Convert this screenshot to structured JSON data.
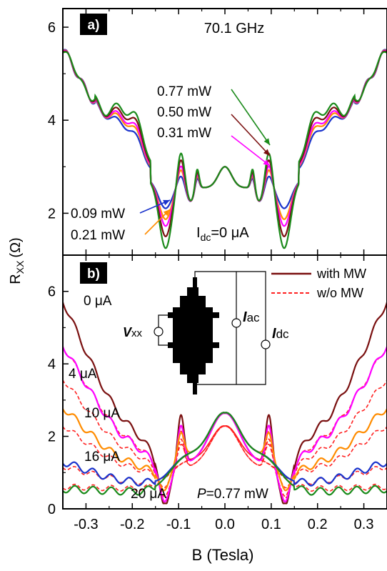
{
  "figure": {
    "ylabel_main": "R",
    "ylabel_sub": "XX",
    "ylabel_unit": "(Ω)",
    "xlabel": "B (Tesla)"
  },
  "chart_data": [
    {
      "type": "line",
      "panel_label": "a)",
      "title": "70.1 GHz",
      "annotation": {
        "main": "I",
        "sub": "dc",
        "rest": "=0 μA"
      },
      "xlim": [
        -0.35,
        0.35
      ],
      "ylim": [
        1.1,
        6.4
      ],
      "xticks": [
        -0.3,
        -0.2,
        -0.1,
        0.0,
        0.1,
        0.2,
        0.3
      ],
      "yticks": [
        2,
        4,
        6
      ],
      "series": [
        {
          "name": "0.77 mW",
          "color": "#1a8a1a",
          "power": 0.77
        },
        {
          "name": "0.50 mW",
          "color": "#7a1010",
          "power": 0.5
        },
        {
          "name": "0.31 mW",
          "color": "#ff00ff",
          "power": 0.31
        },
        {
          "name": "0.21 mW",
          "color": "#ff8c00",
          "power": 0.21
        },
        {
          "name": "0.09 mW",
          "color": "#1a33cc",
          "power": 0.09
        }
      ]
    },
    {
      "type": "line",
      "panel_label": "b)",
      "annotation": {
        "main": "P",
        "rest": "=0.77 mW"
      },
      "xlim": [
        -0.35,
        0.35
      ],
      "ylim": [
        0,
        7
      ],
      "xticks": [
        -0.3,
        -0.2,
        -0.1,
        0.0,
        0.1,
        0.2,
        0.3
      ],
      "xticklabels": [
        "-0.3",
        "-0.2",
        "-0.1",
        "0.0",
        "0.1",
        "0.2",
        "0.3"
      ],
      "yticks": [
        0,
        2,
        4,
        6
      ],
      "legend": [
        {
          "label": "with MW",
          "style": "solid",
          "color": "#7a1010"
        },
        {
          "label": "w/o MW",
          "style": "dashed",
          "color": "#ff2020"
        }
      ],
      "series": [
        {
          "name": "0 μA",
          "color": "#7a1010",
          "idc": 0
        },
        {
          "name": "4 μA",
          "color": "#ff00ff",
          "idc": 4
        },
        {
          "name": "10 μA",
          "color": "#ff8c00",
          "idc": 10
        },
        {
          "name": "16 μA",
          "color": "#1a33cc",
          "idc": 16
        },
        {
          "name": "20 μA",
          "color": "#1a8a1a",
          "idc": 20
        }
      ],
      "inset_labels": {
        "vxx": {
          "main": "V",
          "sub": "xx"
        },
        "iac": {
          "main": "I",
          "sub": "ac"
        },
        "idc": {
          "main": "I",
          "sub": "dc"
        }
      }
    }
  ]
}
